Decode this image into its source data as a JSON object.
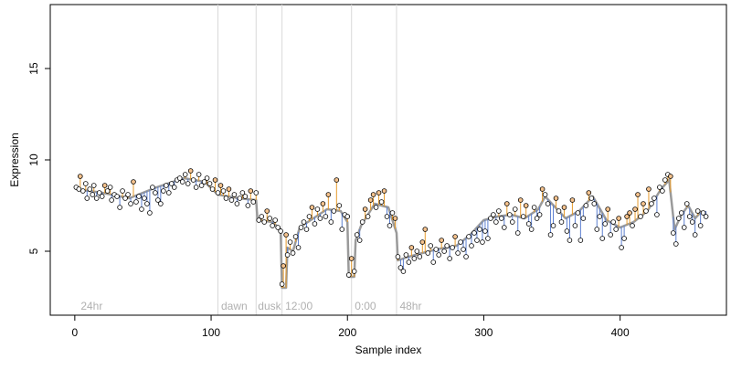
{
  "chart_data": {
    "type": "scatter",
    "xlabel": "Sample index",
    "ylabel": "Expression",
    "xlim": [
      -18,
      478
    ],
    "ylim": [
      1.5,
      18.5
    ],
    "x_ticks": [
      0,
      100,
      200,
      300,
      400
    ],
    "y_ticks": [
      5,
      10,
      15
    ],
    "grid": false,
    "vlines": [
      105,
      133,
      152,
      203,
      236
    ],
    "annotations": [
      {
        "text": "24hr",
        "x": 3
      },
      {
        "text": "dawn",
        "x": 106
      },
      {
        "text": "dusk",
        "x": 133
      },
      {
        "text": "12:00",
        "x": 153
      },
      {
        "text": "0:00",
        "x": 204
      },
      {
        "text": "48hr",
        "x": 237
      }
    ],
    "annotation_y": 2.0,
    "colors": {
      "points_fill_a": "#f6c38e",
      "points_fill_b": "#ffffff",
      "points_stroke": "#000000",
      "line_model": "#9a9a9a",
      "segment_up": "#e69a2b",
      "segment_down": "#5b7fd0",
      "vline": "#d9d9d9",
      "annotation": "#b0b0b0"
    },
    "model_points": [
      [
        1,
        8.4
      ],
      [
        20,
        8.2
      ],
      [
        40,
        7.9
      ],
      [
        60,
        8.5
      ],
      [
        80,
        9.0
      ],
      [
        95,
        8.8
      ],
      [
        105,
        8.1
      ],
      [
        120,
        7.9
      ],
      [
        133,
        7.8
      ],
      [
        134,
        6.7
      ],
      [
        145,
        6.6
      ],
      [
        151,
        6.2
      ],
      [
        152,
        3.0
      ],
      [
        155,
        3.0
      ],
      [
        156,
        5.2
      ],
      [
        160,
        5.0
      ],
      [
        165,
        6.3
      ],
      [
        175,
        6.8
      ],
      [
        185,
        7.3
      ],
      [
        195,
        7.2
      ],
      [
        200,
        6.6
      ],
      [
        201,
        3.6
      ],
      [
        205,
        3.6
      ],
      [
        206,
        5.6
      ],
      [
        210,
        6.4
      ],
      [
        220,
        7.6
      ],
      [
        230,
        7.4
      ],
      [
        236,
        6.0
      ],
      [
        237,
        4.5
      ],
      [
        245,
        4.7
      ],
      [
        255,
        4.9
      ],
      [
        265,
        5.1
      ],
      [
        280,
        5.3
      ],
      [
        290,
        5.9
      ],
      [
        300,
        6.7
      ],
      [
        310,
        6.9
      ],
      [
        320,
        7.0
      ],
      [
        330,
        6.8
      ],
      [
        340,
        7.3
      ],
      [
        345,
        8.0
      ],
      [
        350,
        7.6
      ],
      [
        360,
        6.8
      ],
      [
        370,
        7.2
      ],
      [
        380,
        8.0
      ],
      [
        390,
        6.7
      ],
      [
        400,
        6.3
      ],
      [
        410,
        6.6
      ],
      [
        420,
        7.2
      ],
      [
        430,
        8.4
      ],
      [
        436,
        8.9
      ],
      [
        440,
        6.2
      ],
      [
        445,
        7.0
      ],
      [
        450,
        7.5
      ],
      [
        455,
        6.8
      ],
      [
        460,
        7.2
      ]
    ],
    "points": [
      [
        1,
        8.5
      ],
      [
        3,
        8.4
      ],
      [
        4,
        9.1
      ],
      [
        6,
        8.3
      ],
      [
        8,
        8.7
      ],
      [
        9,
        7.9
      ],
      [
        11,
        8.4
      ],
      [
        13,
        8.1
      ],
      [
        14,
        8.6
      ],
      [
        16,
        7.9
      ],
      [
        18,
        8.2
      ],
      [
        20,
        8.0
      ],
      [
        22,
        8.6
      ],
      [
        24,
        8.3
      ],
      [
        26,
        8.5
      ],
      [
        27,
        7.8
      ],
      [
        29,
        8.1
      ],
      [
        31,
        8.0
      ],
      [
        33,
        7.4
      ],
      [
        35,
        8.3
      ],
      [
        37,
        7.9
      ],
      [
        39,
        8.1
      ],
      [
        41,
        7.6
      ],
      [
        43,
        8.8
      ],
      [
        45,
        7.7
      ],
      [
        47,
        8.0
      ],
      [
        49,
        7.3
      ],
      [
        51,
        7.9
      ],
      [
        53,
        7.6
      ],
      [
        55,
        7.1
      ],
      [
        57,
        8.5
      ],
      [
        59,
        8.2
      ],
      [
        61,
        7.8
      ],
      [
        63,
        7.6
      ],
      [
        65,
        8.3
      ],
      [
        67,
        8.6
      ],
      [
        69,
        8.2
      ],
      [
        71,
        8.7
      ],
      [
        73,
        8.5
      ],
      [
        75,
        8.9
      ],
      [
        77,
        9.0
      ],
      [
        79,
        8.8
      ],
      [
        81,
        9.2
      ],
      [
        83,
        8.7
      ],
      [
        85,
        9.4
      ],
      [
        87,
        8.9
      ],
      [
        89,
        8.5
      ],
      [
        91,
        9.2
      ],
      [
        93,
        8.6
      ],
      [
        95,
        8.8
      ],
      [
        97,
        9.0
      ],
      [
        99,
        8.7
      ],
      [
        101,
        8.4
      ],
      [
        103,
        8.9
      ],
      [
        105,
        8.2
      ],
      [
        107,
        8.6
      ],
      [
        109,
        8.3
      ],
      [
        111,
        7.9
      ],
      [
        113,
        8.4
      ],
      [
        115,
        7.8
      ],
      [
        117,
        8.1
      ],
      [
        119,
        7.6
      ],
      [
        121,
        7.9
      ],
      [
        123,
        8.2
      ],
      [
        125,
        8.0
      ],
      [
        127,
        7.5
      ],
      [
        129,
        8.3
      ],
      [
        131,
        7.7
      ],
      [
        133,
        8.2
      ],
      [
        135,
        6.7
      ],
      [
        137,
        6.9
      ],
      [
        139,
        6.6
      ],
      [
        141,
        7.2
      ],
      [
        143,
        6.8
      ],
      [
        145,
        6.4
      ],
      [
        147,
        6.7
      ],
      [
        149,
        6.3
      ],
      [
        151,
        6.1
      ],
      [
        152,
        3.2
      ],
      [
        153,
        4.2
      ],
      [
        155,
        5.9
      ],
      [
        156,
        4.8
      ],
      [
        158,
        5.5
      ],
      [
        160,
        4.9
      ],
      [
        162,
        5.8
      ],
      [
        164,
        5.2
      ],
      [
        166,
        6.3
      ],
      [
        168,
        6.6
      ],
      [
        170,
        6.2
      ],
      [
        172,
        6.9
      ],
      [
        174,
        7.4
      ],
      [
        176,
        6.5
      ],
      [
        178,
        7.3
      ],
      [
        180,
        6.8
      ],
      [
        182,
        7.6
      ],
      [
        184,
        6.9
      ],
      [
        186,
        8.1
      ],
      [
        188,
        6.6
      ],
      [
        190,
        7.2
      ],
      [
        192,
        8.9
      ],
      [
        194,
        7.5
      ],
      [
        196,
        6.2
      ],
      [
        198,
        7.0
      ],
      [
        200,
        6.9
      ],
      [
        201,
        3.7
      ],
      [
        203,
        4.6
      ],
      [
        205,
        3.9
      ],
      [
        207,
        5.9
      ],
      [
        209,
        5.6
      ],
      [
        211,
        6.6
      ],
      [
        213,
        7.3
      ],
      [
        215,
        6.9
      ],
      [
        217,
        7.8
      ],
      [
        219,
        8.1
      ],
      [
        221,
        7.4
      ],
      [
        223,
        8.2
      ],
      [
        225,
        7.7
      ],
      [
        227,
        8.3
      ],
      [
        229,
        6.9
      ],
      [
        231,
        6.4
      ],
      [
        233,
        7.1
      ],
      [
        235,
        6.8
      ],
      [
        237,
        4.7
      ],
      [
        239,
        4.1
      ],
      [
        241,
        3.9
      ],
      [
        243,
        4.8
      ],
      [
        245,
        4.4
      ],
      [
        247,
        5.2
      ],
      [
        249,
        4.6
      ],
      [
        251,
        5.0
      ],
      [
        253,
        4.7
      ],
      [
        255,
        5.5
      ],
      [
        257,
        6.2
      ],
      [
        259,
        4.9
      ],
      [
        261,
        5.3
      ],
      [
        263,
        4.4
      ],
      [
        265,
        5.1
      ],
      [
        267,
        4.8
      ],
      [
        269,
        5.6
      ],
      [
        271,
        5.0
      ],
      [
        273,
        5.3
      ],
      [
        275,
        4.6
      ],
      [
        277,
        5.2
      ],
      [
        279,
        5.8
      ],
      [
        281,
        4.9
      ],
      [
        283,
        5.5
      ],
      [
        285,
        5.1
      ],
      [
        287,
        4.7
      ],
      [
        289,
        5.8
      ],
      [
        291,
        5.3
      ],
      [
        293,
        6.0
      ],
      [
        295,
        5.6
      ],
      [
        297,
        6.2
      ],
      [
        299,
        5.5
      ],
      [
        301,
        6.1
      ],
      [
        303,
        5.7
      ],
      [
        305,
        6.8
      ],
      [
        307,
        7.0
      ],
      [
        309,
        6.6
      ],
      [
        311,
        7.2
      ],
      [
        313,
        6.8
      ],
      [
        315,
        6.3
      ],
      [
        317,
        7.6
      ],
      [
        319,
        7.0
      ],
      [
        321,
        6.6
      ],
      [
        323,
        7.3
      ],
      [
        325,
        6.0
      ],
      [
        327,
        7.8
      ],
      [
        329,
        6.9
      ],
      [
        331,
        7.5
      ],
      [
        333,
        6.5
      ],
      [
        335,
        6.2
      ],
      [
        337,
        7.4
      ],
      [
        339,
        6.8
      ],
      [
        341,
        7.0
      ],
      [
        343,
        8.4
      ],
      [
        345,
        8.1
      ],
      [
        347,
        7.6
      ],
      [
        349,
        5.9
      ],
      [
        351,
        6.4
      ],
      [
        353,
        7.9
      ],
      [
        355,
        7.2
      ],
      [
        357,
        6.6
      ],
      [
        359,
        7.4
      ],
      [
        361,
        6.1
      ],
      [
        363,
        5.6
      ],
      [
        365,
        7.8
      ],
      [
        367,
        6.4
      ],
      [
        369,
        7.1
      ],
      [
        371,
        5.6
      ],
      [
        373,
        6.8
      ],
      [
        375,
        7.5
      ],
      [
        377,
        8.2
      ],
      [
        379,
        7.9
      ],
      [
        381,
        7.6
      ],
      [
        383,
        6.2
      ],
      [
        385,
        6.9
      ],
      [
        387,
        5.7
      ],
      [
        389,
        6.5
      ],
      [
        391,
        7.3
      ],
      [
        393,
        5.9
      ],
      [
        395,
        6.6
      ],
      [
        397,
        6.2
      ],
      [
        399,
        6.8
      ],
      [
        401,
        5.2
      ],
      [
        403,
        5.7
      ],
      [
        405,
        6.9
      ],
      [
        407,
        7.1
      ],
      [
        409,
        6.4
      ],
      [
        411,
        7.3
      ],
      [
        413,
        8.1
      ],
      [
        415,
        6.9
      ],
      [
        417,
        7.6
      ],
      [
        419,
        7.2
      ],
      [
        421,
        8.4
      ],
      [
        423,
        7.6
      ],
      [
        425,
        7.9
      ],
      [
        427,
        7.0
      ],
      [
        429,
        8.5
      ],
      [
        431,
        8.3
      ],
      [
        433,
        8.9
      ],
      [
        435,
        9.2
      ],
      [
        437,
        9.1
      ],
      [
        439,
        6.0
      ],
      [
        441,
        5.4
      ],
      [
        443,
        6.8
      ],
      [
        445,
        7.1
      ],
      [
        447,
        6.3
      ],
      [
        449,
        7.6
      ],
      [
        451,
        6.9
      ],
      [
        453,
        6.6
      ],
      [
        455,
        5.9
      ],
      [
        457,
        7.2
      ],
      [
        459,
        6.4
      ],
      [
        461,
        7.1
      ],
      [
        463,
        6.9
      ]
    ]
  }
}
